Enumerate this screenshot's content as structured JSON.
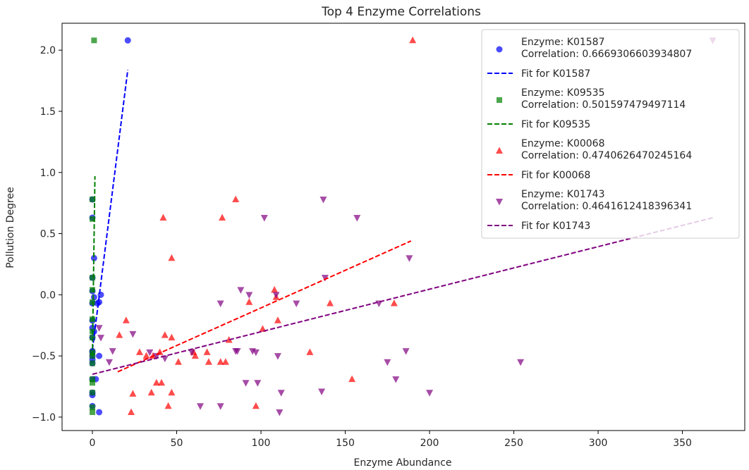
{
  "chart_data": {
    "type": "scatter",
    "title": "Top 4 Enzyme Correlations",
    "xlabel": "Enzyme Abundance",
    "ylabel": "Pollution Degree",
    "xlim": [
      -18,
      387
    ],
    "ylim": [
      -1.11,
      2.22
    ],
    "xticks": [
      0,
      50,
      100,
      150,
      200,
      250,
      300,
      350
    ],
    "yticks": [
      -1.0,
      -0.5,
      0.0,
      0.5,
      1.0,
      1.5,
      2.0
    ],
    "xtick_labels": [
      "0",
      "50",
      "100",
      "150",
      "200",
      "250",
      "300",
      "350"
    ],
    "ytick_labels": [
      "−1.0",
      "−0.5",
      "0.0",
      "0.5",
      "1.0",
      "1.5",
      "2.0"
    ],
    "grid": false,
    "legend_position": "upper-right",
    "series": [
      {
        "name": "K01587",
        "legend_line1": "Enzyme: K01587",
        "legend_line2": "Correlation: 0.6669306603934807",
        "fit_label": "Fit for K01587",
        "marker": "circle",
        "color": "#0000ff",
        "points": [
          [
            21,
            2.08
          ],
          [
            0,
            0.78
          ],
          [
            0,
            0.63
          ],
          [
            1,
            0.3
          ],
          [
            0,
            0.14
          ],
          [
            5,
            0.0
          ],
          [
            0,
            0.03
          ],
          [
            1,
            -0.02
          ],
          [
            4,
            -0.06
          ],
          [
            0,
            -0.07
          ],
          [
            3,
            -0.07
          ],
          [
            0,
            -0.21
          ],
          [
            0,
            -0.27
          ],
          [
            1,
            -0.3
          ],
          [
            0,
            -0.35
          ],
          [
            0,
            -0.46
          ],
          [
            0,
            -0.47
          ],
          [
            0,
            -0.5
          ],
          [
            4,
            -0.5
          ],
          [
            0,
            -0.53
          ],
          [
            0,
            -0.56
          ],
          [
            0,
            -0.69
          ],
          [
            2,
            -0.69
          ],
          [
            0,
            -0.8
          ],
          [
            0,
            -0.82
          ],
          [
            0,
            -0.91
          ],
          [
            4,
            -0.96
          ]
        ],
        "fit": [
          [
            0,
            -0.45
          ],
          [
            21,
            1.84
          ]
        ]
      },
      {
        "name": "K09535",
        "legend_line1": "Enzyme: K09535",
        "legend_line2": "Correlation: 0.501597479497114",
        "fit_label": "Fit for K09535",
        "marker": "square",
        "color": "#008000",
        "points": [
          [
            1,
            2.08
          ],
          [
            0,
            0.78
          ],
          [
            0,
            0.62
          ],
          [
            0,
            0.14
          ],
          [
            0,
            0.04
          ],
          [
            0,
            -0.06
          ],
          [
            0,
            -0.2
          ],
          [
            0,
            -0.3
          ],
          [
            0,
            -0.35
          ],
          [
            0,
            -0.47
          ],
          [
            0,
            -0.5
          ],
          [
            0,
            -0.56
          ],
          [
            0,
            -0.69
          ],
          [
            0,
            -0.72
          ],
          [
            0,
            -0.8
          ],
          [
            0,
            -0.92
          ],
          [
            0,
            -0.96
          ]
        ],
        "fit": [
          [
            0,
            -0.5
          ],
          [
            1.5,
            0.97
          ]
        ]
      },
      {
        "name": "K00068",
        "legend_line1": "Enzyme: K00068",
        "legend_line2": "Correlation: 0.4740626470245164",
        "fit_label": "Fit for K00068",
        "marker": "triangle-up",
        "color": "#ff0000",
        "points": [
          [
            190,
            2.08
          ],
          [
            42,
            0.63
          ],
          [
            77,
            0.63
          ],
          [
            85,
            0.78
          ],
          [
            47,
            0.3
          ],
          [
            20,
            -0.21
          ],
          [
            16,
            -0.33
          ],
          [
            28,
            -0.47
          ],
          [
            43,
            -0.33
          ],
          [
            47,
            -0.35
          ],
          [
            40,
            -0.47
          ],
          [
            51,
            -0.55
          ],
          [
            32,
            -0.5
          ],
          [
            36,
            -0.5
          ],
          [
            60,
            -0.47
          ],
          [
            61,
            -0.5
          ],
          [
            68,
            -0.47
          ],
          [
            69,
            -0.55
          ],
          [
            76,
            -0.55
          ],
          [
            79,
            -0.55
          ],
          [
            81,
            -0.37
          ],
          [
            108,
            0.04
          ],
          [
            109,
            -0.02
          ],
          [
            110,
            -0.21
          ],
          [
            93,
            -0.06
          ],
          [
            101,
            -0.28
          ],
          [
            129,
            -0.47
          ],
          [
            141,
            -0.07
          ],
          [
            154,
            -0.69
          ],
          [
            179,
            -0.07
          ],
          [
            23,
            -0.96
          ],
          [
            24,
            -0.81
          ],
          [
            38,
            -0.72
          ],
          [
            35,
            -0.8
          ],
          [
            41,
            -0.72
          ],
          [
            45,
            -0.91
          ],
          [
            47,
            -0.8
          ],
          [
            97,
            -0.91
          ]
        ],
        "fit": [
          [
            15,
            -0.63
          ],
          [
            189,
            0.44
          ]
        ]
      },
      {
        "name": "K01743",
        "legend_line1": "Enzyme: K01743",
        "legend_line2": "Correlation: 0.4641612418396341",
        "fit_label": "Fit for K01743",
        "marker": "triangle-down",
        "color": "#800080",
        "points": [
          [
            368,
            2.08
          ],
          [
            137,
            0.78
          ],
          [
            157,
            0.63
          ],
          [
            102,
            0.63
          ],
          [
            188,
            0.3
          ],
          [
            138,
            0.14
          ],
          [
            88,
            0.04
          ],
          [
            93,
            -0.0
          ],
          [
            109,
            0.0
          ],
          [
            76,
            -0.07
          ],
          [
            121,
            -0.07
          ],
          [
            170,
            -0.07
          ],
          [
            4,
            -0.27
          ],
          [
            24,
            -0.32
          ],
          [
            5,
            -0.35
          ],
          [
            12,
            -0.46
          ],
          [
            10,
            -0.55
          ],
          [
            34,
            -0.47
          ],
          [
            38,
            -0.5
          ],
          [
            43,
            -0.52
          ],
          [
            59,
            -0.47
          ],
          [
            85,
            -0.46
          ],
          [
            86,
            -0.46
          ],
          [
            95,
            -0.46
          ],
          [
            97,
            -0.47
          ],
          [
            110,
            -0.5
          ],
          [
            186,
            -0.46
          ],
          [
            175,
            -0.55
          ],
          [
            254,
            -0.55
          ],
          [
            91,
            -0.72
          ],
          [
            98,
            -0.72
          ],
          [
            112,
            -0.8
          ],
          [
            136,
            -0.79
          ],
          [
            180,
            -0.69
          ],
          [
            200,
            -0.8
          ],
          [
            64,
            -0.91
          ],
          [
            76,
            -0.91
          ],
          [
            111,
            -0.96
          ]
        ],
        "fit": [
          [
            0,
            -0.65
          ],
          [
            368,
            0.63
          ]
        ]
      }
    ]
  }
}
